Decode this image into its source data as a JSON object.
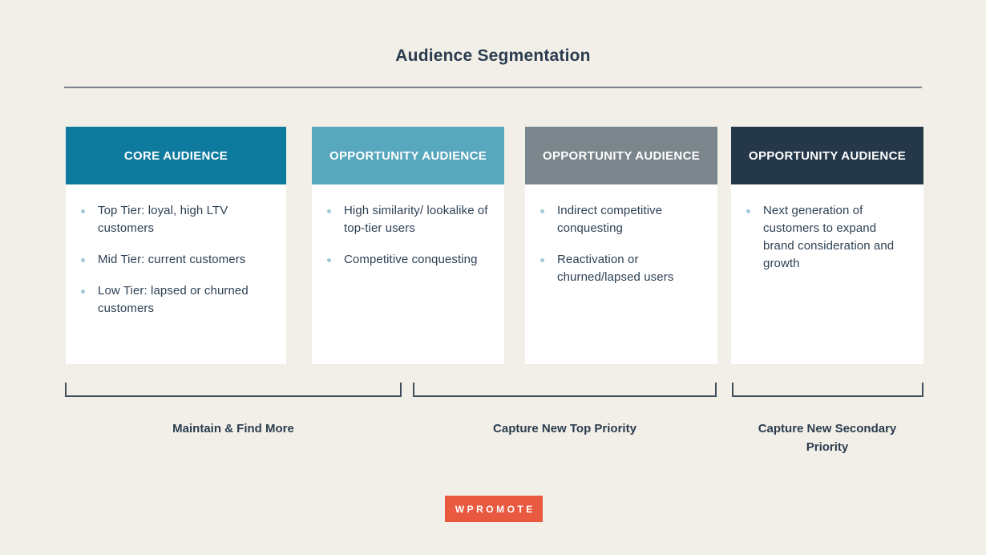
{
  "title": "Audience Segmentation",
  "cards": [
    {
      "header": "CORE AUDIENCE",
      "header_color": "#0e7a9e",
      "bullets": [
        "Top Tier: loyal, high LTV customers",
        "Mid Tier: current customers",
        "Low Tier: lapsed or churned customers"
      ]
    },
    {
      "header": "OPPORTUNITY AUDIENCE",
      "header_color": "#57a7bd",
      "bullets": [
        "High similarity/ lookalike of top-tier users",
        "Competitive conquesting"
      ]
    },
    {
      "header": "OPPORTUNITY AUDIENCE",
      "header_color": "#7b858c",
      "bullets": [
        "Indirect competitive conquesting",
        "Reactivation or churned/lapsed users"
      ]
    },
    {
      "header": "OPPORTUNITY AUDIENCE",
      "header_color": "#25384a",
      "bullets": [
        "Next generation of customers to expand brand consideration and growth"
      ]
    }
  ],
  "groups": [
    {
      "label": "Maintain & Find More"
    },
    {
      "label": "Capture New Top Priority"
    },
    {
      "label": "Capture New Secondary Priority"
    }
  ],
  "logo": {
    "label": "WPROMOTE",
    "color": "#e8593f"
  },
  "colors": {
    "background": "#f2efe8",
    "card_body": "#ffffff",
    "text": "#2e4154",
    "bullet": "#9fcbdb",
    "title_rule": "#7d838b",
    "bracket": "#3e4e5a"
  }
}
